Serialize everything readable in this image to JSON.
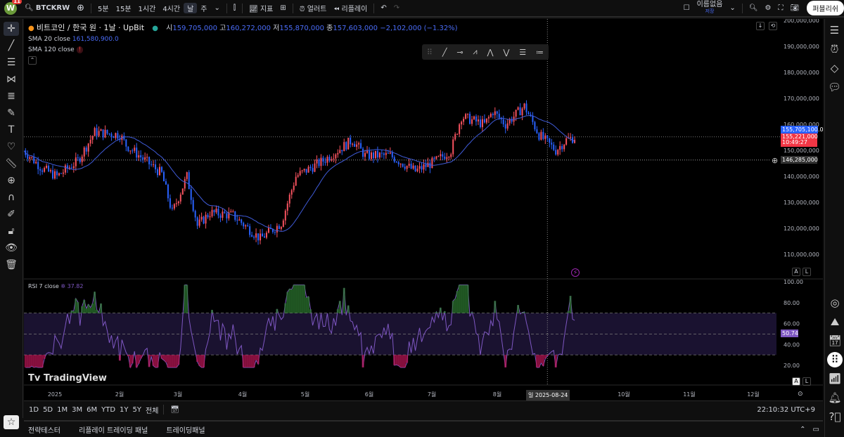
{
  "topbar": {
    "logo_letter": "W",
    "notifications": "11",
    "symbol": "BTCKRW",
    "intervals": [
      "5분",
      "15분",
      "1시간",
      "4시간",
      "날",
      "주"
    ],
    "indicators": "지표",
    "alert": "얼러트",
    "replay": "리플레이",
    "layout_name": "이름없음",
    "layout_status": "저장",
    "publish": "퍼블리쉬"
  },
  "legend": {
    "title": "비트코인 / 한국 원 · 1날 · UpBit",
    "o_label": "시",
    "o": "159,705,000",
    "h_label": "고",
    "h": "160,272,000",
    "l_label": "저",
    "l": "155,870,000",
    "c_label": "종",
    "c": "157,603,000",
    "change": "−2,102,000 (−1.32%)",
    "sma20_label": "SMA 20 close",
    "sma20_value": "161,580,900.0",
    "sma120_label": "SMA 120 close",
    "rsi_label": "RSI 7 close",
    "rsi_value": "37.82"
  },
  "price_axis": {
    "ticks": [
      "200,000,000",
      "190,000,000",
      "180,000,000",
      "170,000,000",
      "160,000,000",
      "150,000,000",
      "140,000,000",
      "130,000,000",
      "120,000,000",
      "110,000,000"
    ],
    "sma_tag": "155,705,100.0",
    "last_price": "155,221,000",
    "countdown": "10:49:27",
    "crosshair_price": "146,285,000"
  },
  "rsi_axis": {
    "ticks": [
      "100.00",
      "80.00",
      "60.00",
      "40.00",
      "20.00"
    ],
    "current": "50.74"
  },
  "time_axis": {
    "ticks": [
      "2025",
      "2월",
      "3월",
      "4월",
      "5월",
      "6월",
      "7월",
      "8월",
      "10월",
      "11월",
      "12월"
    ],
    "crosshair_date": "일 2025-08-24"
  },
  "watermark": "TradingView",
  "range_bar": {
    "ranges": [
      "1D",
      "5D",
      "1M",
      "3M",
      "6M",
      "YTD",
      "1Y",
      "5Y",
      "전체"
    ],
    "clock": "22:10:32 UTC+9"
  },
  "bottom_panel": {
    "tabs": [
      "전략테스터",
      "리플레이 트레이딩 패널",
      "트레이딩패널"
    ]
  },
  "scale_buttons": {
    "auto": "A",
    "log": "L"
  },
  "colors": {
    "up": "#f7525f",
    "down": "#2962ff",
    "sma": "#3f5bd8",
    "rsi": "#7e57c2",
    "background": "#000000"
  },
  "chart_data": {
    "type": "candlestick",
    "unit": "KRW (millions)",
    "x_unit": "days since 2025-01-01",
    "ylim": [
      105,
      200
    ],
    "keypoints": [
      [
        -15,
        150
      ],
      [
        -6,
        143
      ],
      [
        1,
        140
      ],
      [
        11,
        146
      ],
      [
        19,
        157
      ],
      [
        31,
        156
      ],
      [
        34,
        152
      ],
      [
        51,
        141
      ],
      [
        56,
        126
      ],
      [
        63,
        140
      ],
      [
        68,
        121
      ],
      [
        74,
        126
      ],
      [
        85,
        125
      ],
      [
        98,
        116
      ],
      [
        108,
        122
      ],
      [
        115,
        140
      ],
      [
        128,
        146
      ],
      [
        142,
        154
      ],
      [
        148,
        148
      ],
      [
        160,
        148
      ],
      [
        172,
        142
      ],
      [
        182,
        146
      ],
      [
        189,
        150
      ],
      [
        194,
        163
      ],
      [
        205,
        160
      ],
      [
        209,
        165
      ],
      [
        215,
        160
      ],
      [
        224,
        167
      ],
      [
        231,
        156
      ],
      [
        239,
        150
      ],
      [
        244,
        154
      ],
      [
        248,
        155
      ]
    ],
    "indicators": [
      "SMA 20",
      "SMA 120",
      "RSI 7"
    ],
    "rsi_bands": [
      30,
      70
    ]
  }
}
